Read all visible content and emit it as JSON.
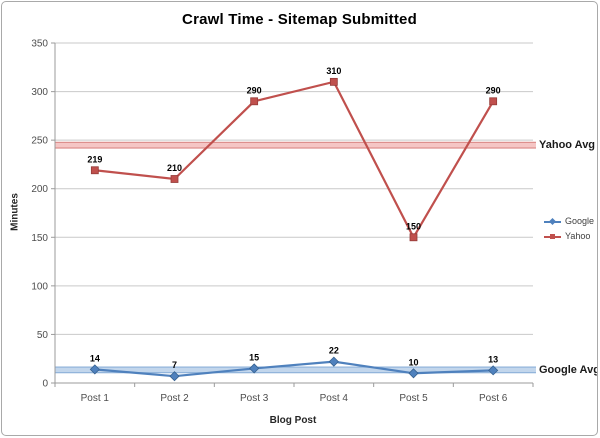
{
  "title": "Crawl Time - Sitemap Submitted",
  "chart_data": {
    "type": "line",
    "title": "Crawl Time - Sitemap Submitted",
    "xlabel": "Blog Post",
    "ylabel": "Minutes",
    "categories": [
      "Post 1",
      "Post 2",
      "Post 3",
      "Post 4",
      "Post 5",
      "Post 6"
    ],
    "series": [
      {
        "name": "Google",
        "color": "#4f81bd",
        "edge": "#36618f",
        "marker": "diamond",
        "values": [
          14,
          7,
          15,
          22,
          10,
          13
        ]
      },
      {
        "name": "Yahoo",
        "color": "#c0504d",
        "edge": "#943c39",
        "marker": "square",
        "values": [
          219,
          210,
          290,
          310,
          150,
          290
        ]
      }
    ],
    "avg_lines": [
      {
        "label": "Yahoo Avg",
        "value": 244.8,
        "band_color": "#f5c6c5",
        "edge_color": "#dd8f8d"
      },
      {
        "label": "Google Avg",
        "value": 13.5,
        "band_color": "#c2d6ec",
        "edge_color": "#8cb0d9"
      }
    ],
    "ylim": [
      0,
      350
    ],
    "yticks": [
      0,
      50,
      100,
      150,
      200,
      250,
      300,
      350
    ],
    "grid": true,
    "legend_position": "right",
    "axis_color": "#9b9b9b",
    "gridline_color": "#c9c9c9",
    "tick_label_color": "#4d4d4d"
  }
}
